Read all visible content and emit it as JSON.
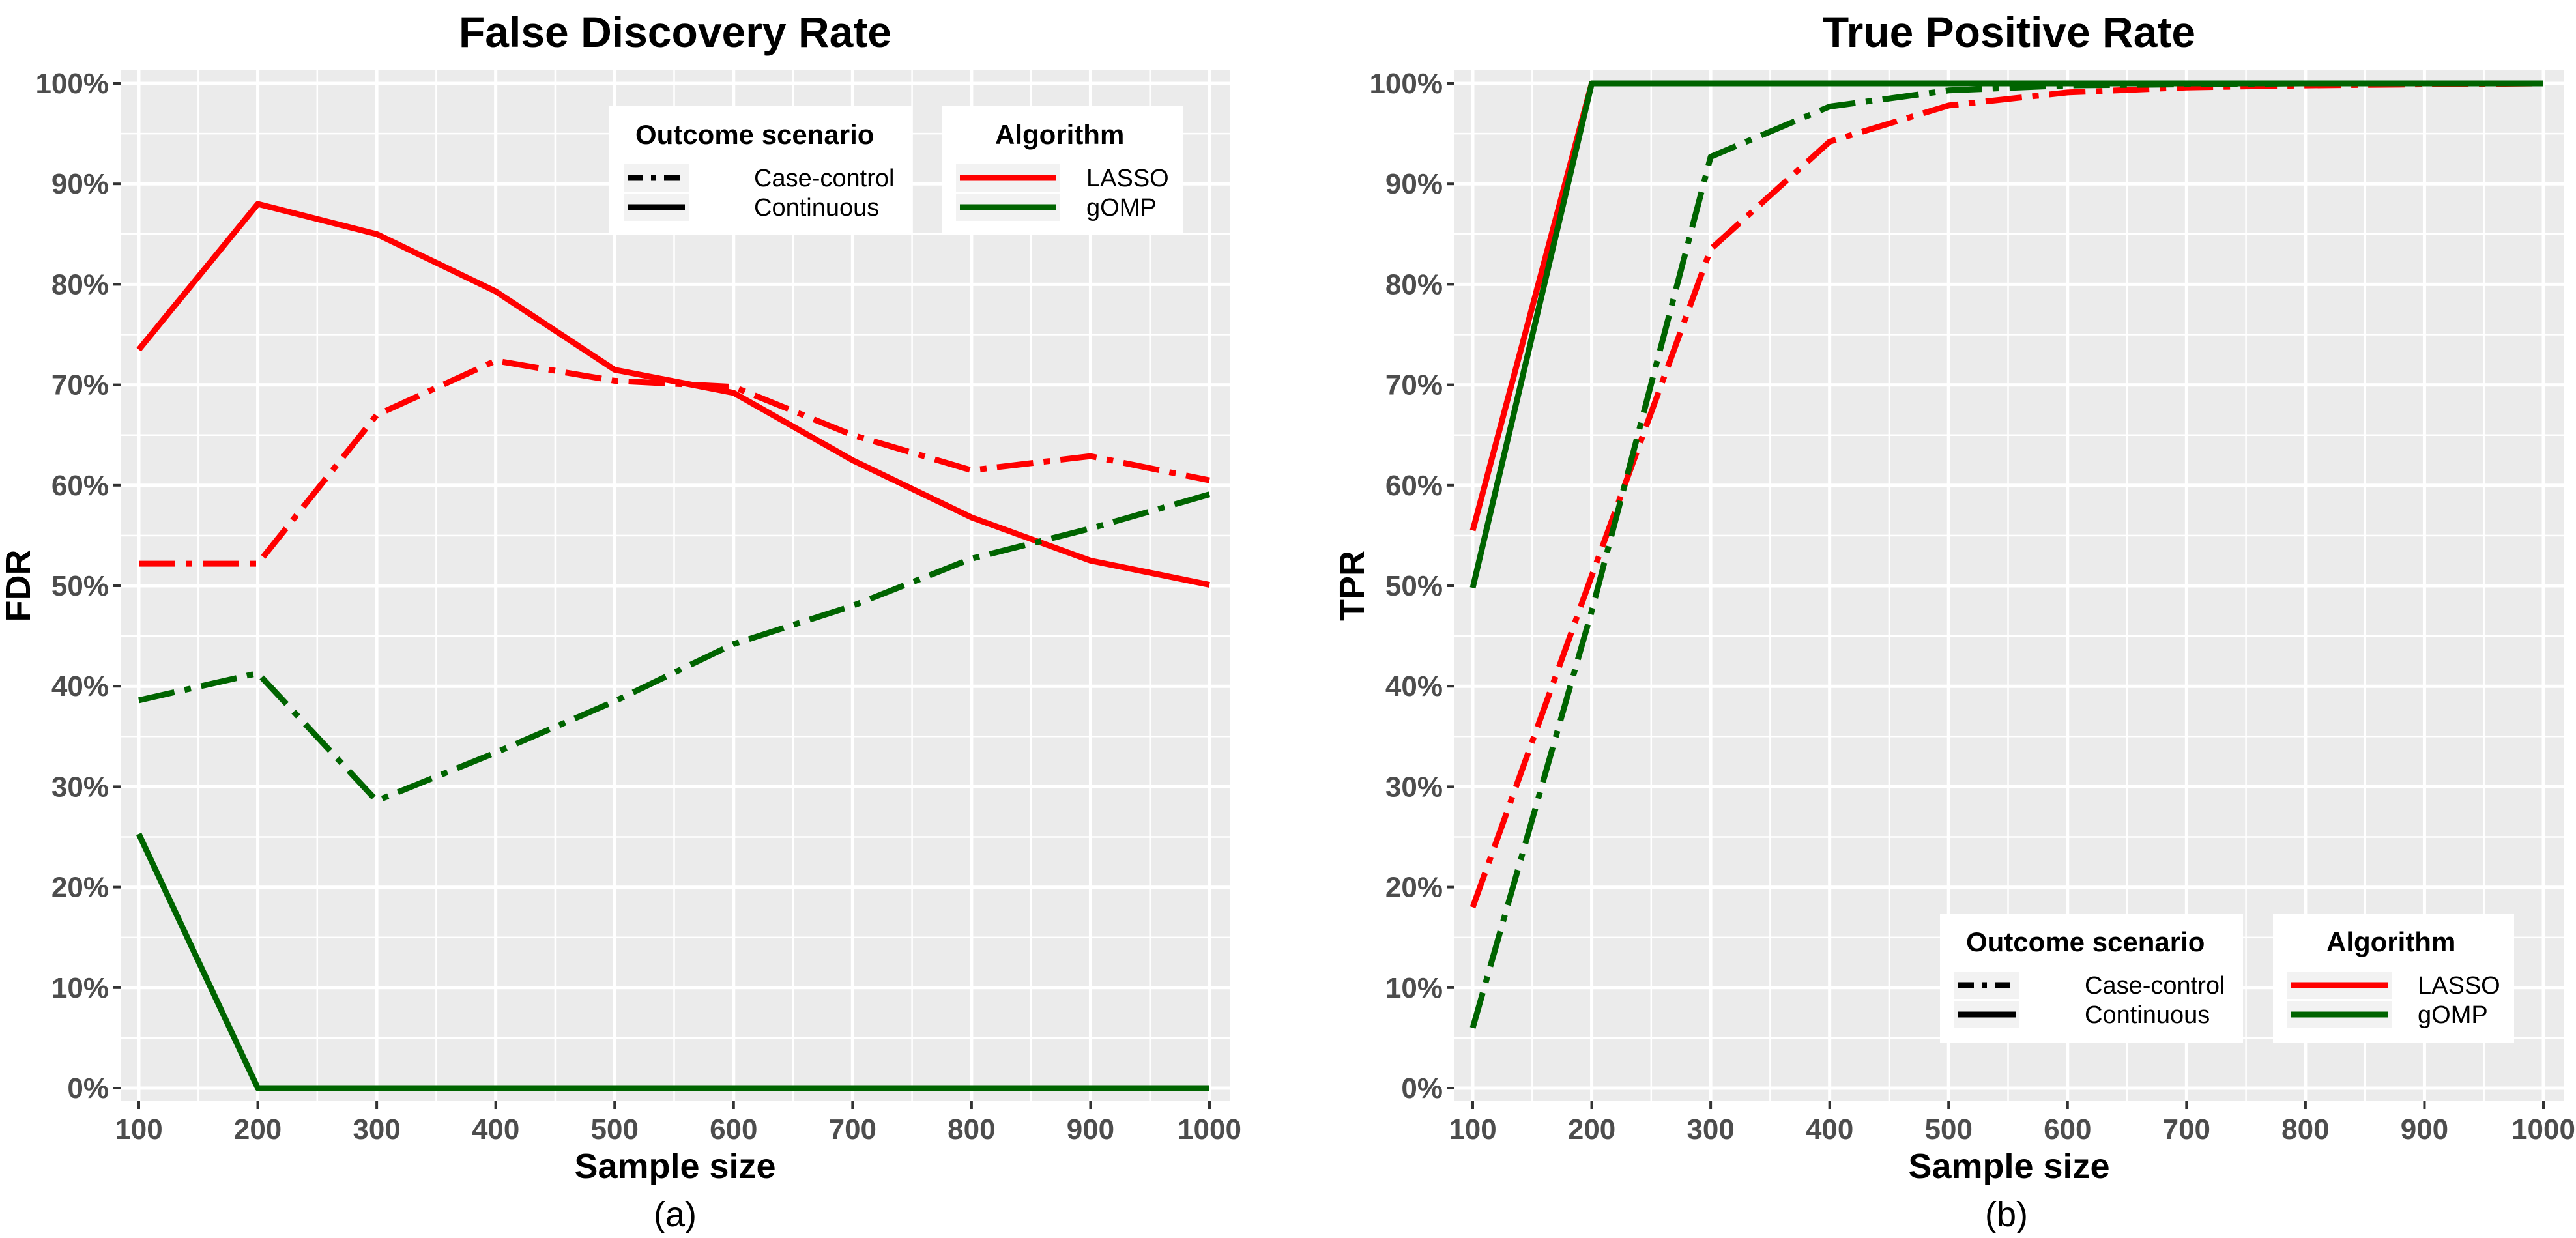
{
  "chart_data": [
    {
      "type": "line",
      "title": "False Discovery Rate",
      "xlabel": "Sample size",
      "ylabel": "FDR",
      "caption": "(a)",
      "x": [
        100,
        200,
        300,
        400,
        500,
        600,
        700,
        800,
        900,
        1000
      ],
      "x_ticks": [
        "100",
        "200",
        "300",
        "400",
        "500",
        "600",
        "700",
        "800",
        "900",
        "1000"
      ],
      "y_ticks": [
        "0%",
        "10%",
        "20%",
        "30%",
        "40%",
        "50%",
        "60%",
        "70%",
        "80%",
        "90%",
        "100%"
      ],
      "xlim": [
        100,
        1000
      ],
      "ylim": [
        0,
        100
      ],
      "legend_position": "top-right",
      "series": [
        {
          "name": "LASSO / Continuous",
          "algorithm": "LASSO",
          "scenario": "Continuous",
          "color": "#ff0000",
          "dash": "solid",
          "values": [
            73.5,
            88,
            85,
            79.3,
            71.5,
            69.2,
            62.5,
            56.8,
            52.5,
            50.1
          ]
        },
        {
          "name": "LASSO / Case-control",
          "algorithm": "LASSO",
          "scenario": "Case-control",
          "color": "#ff0000",
          "dash": "dotdash",
          "values": [
            52.2,
            52.2,
            67,
            72.4,
            70.4,
            69.8,
            65,
            61.5,
            62.9,
            60.5
          ]
        },
        {
          "name": "gOMP / Continuous",
          "algorithm": "gOMP",
          "scenario": "Continuous",
          "color": "#006400",
          "dash": "solid",
          "values": [
            25.3,
            0,
            0,
            0,
            0,
            0,
            0,
            0,
            0,
            0
          ]
        },
        {
          "name": "gOMP / Case-control",
          "algorithm": "gOMP",
          "scenario": "Case-control",
          "color": "#006400",
          "dash": "dotdash",
          "values": [
            38.6,
            41.3,
            28.6,
            33.4,
            38.5,
            44.2,
            48,
            52.7,
            55.7,
            59.1
          ]
        }
      ],
      "legend": {
        "scenario_title": "Outcome scenario",
        "scenario_items": [
          "Case-control",
          "Continuous"
        ],
        "algorithm_title": "Algorithm",
        "algorithm_items": [
          "LASSO",
          "gOMP"
        ]
      }
    },
    {
      "type": "line",
      "title": "True Positive Rate",
      "xlabel": "Sample size",
      "ylabel": "TPR",
      "caption": "(b)",
      "x": [
        100,
        200,
        300,
        400,
        500,
        600,
        700,
        800,
        900,
        1000
      ],
      "x_ticks": [
        "100",
        "200",
        "300",
        "400",
        "500",
        "600",
        "700",
        "800",
        "900",
        "1000"
      ],
      "y_ticks": [
        "0%",
        "10%",
        "20%",
        "30%",
        "40%",
        "50%",
        "60%",
        "70%",
        "80%",
        "90%",
        "100%"
      ],
      "xlim": [
        100,
        1000
      ],
      "ylim": [
        0,
        100
      ],
      "legend_position": "bottom-right",
      "series": [
        {
          "name": "LASSO / Continuous",
          "algorithm": "LASSO",
          "scenario": "Continuous",
          "color": "#ff0000",
          "dash": "solid",
          "values": [
            55.5,
            100,
            100,
            100,
            100,
            100,
            100,
            100,
            100,
            100
          ]
        },
        {
          "name": "LASSO / Case-control",
          "algorithm": "LASSO",
          "scenario": "Case-control",
          "color": "#ff0000",
          "dash": "dotdash",
          "values": [
            18,
            51,
            83.5,
            94.2,
            97.8,
            99.1,
            99.6,
            99.8,
            99.9,
            100
          ]
        },
        {
          "name": "gOMP / Continuous",
          "algorithm": "gOMP",
          "scenario": "Continuous",
          "color": "#006400",
          "dash": "solid",
          "values": [
            49.8,
            100,
            100,
            100,
            100,
            100,
            100,
            100,
            100,
            100
          ]
        },
        {
          "name": "gOMP / Case-control",
          "algorithm": "gOMP",
          "scenario": "Case-control",
          "color": "#006400",
          "dash": "dotdash",
          "values": [
            6,
            47.5,
            92.7,
            97.7,
            99.3,
            99.8,
            99.9,
            100,
            100,
            100
          ]
        }
      ],
      "legend": {
        "scenario_title": "Outcome scenario",
        "scenario_items": [
          "Case-control",
          "Continuous"
        ],
        "algorithm_title": "Algorithm",
        "algorithm_items": [
          "LASSO",
          "gOMP"
        ]
      }
    }
  ]
}
